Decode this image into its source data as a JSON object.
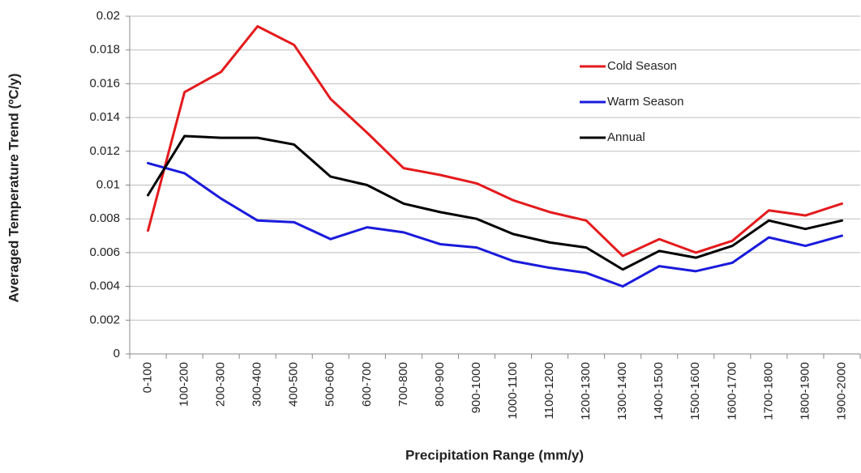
{
  "chart_data": {
    "type": "line",
    "x_label": "Precipitation Range (mm/y)",
    "y_label": "Averaged Temperature Trend (ºC/y)",
    "categories": [
      "0-100",
      "100-200",
      "200-300",
      "300-400",
      "400-500",
      "500-600",
      "600-700",
      "700-800",
      "800-900",
      "900-1000",
      "1000-1100",
      "1100-1200",
      "1200-1300",
      "1300-1400",
      "1400-1500",
      "1500-1600",
      "1600-1700",
      "1700-1800",
      "1800-1900",
      "1900-2000"
    ],
    "series": [
      {
        "name": "Cold Season",
        "color": "#e41a1c",
        "values": [
          0.0073,
          0.0155,
          0.0167,
          0.0194,
          0.0183,
          0.0151,
          0.0131,
          0.011,
          0.0106,
          0.0101,
          0.0091,
          0.0084,
          0.0079,
          0.0058,
          0.0068,
          0.006,
          0.0067,
          0.0085,
          0.0082,
          0.0089
        ]
      },
      {
        "name": "Warm Season",
        "color": "#1a1adc",
        "values": [
          0.0113,
          0.0107,
          0.0092,
          0.0079,
          0.0078,
          0.0068,
          0.0075,
          0.0072,
          0.0065,
          0.0063,
          0.0055,
          0.0051,
          0.0048,
          0.004,
          0.0052,
          0.0049,
          0.0054,
          0.0069,
          0.0064,
          0.007
        ]
      },
      {
        "name": "Annual",
        "color": "#000000",
        "values": [
          0.0094,
          0.0129,
          0.0128,
          0.0128,
          0.0124,
          0.0105,
          0.01,
          0.0089,
          0.0084,
          0.008,
          0.0071,
          0.0066,
          0.0063,
          0.005,
          0.0061,
          0.0057,
          0.0064,
          0.0079,
          0.0074,
          0.0079
        ]
      }
    ],
    "ylim": [
      0,
      0.02
    ],
    "yticks": [
      0,
      0.002,
      0.004,
      0.006,
      0.008,
      0.01,
      0.012,
      0.014,
      0.016,
      0.018,
      0.02
    ],
    "grid": true,
    "legend": "upper right"
  }
}
